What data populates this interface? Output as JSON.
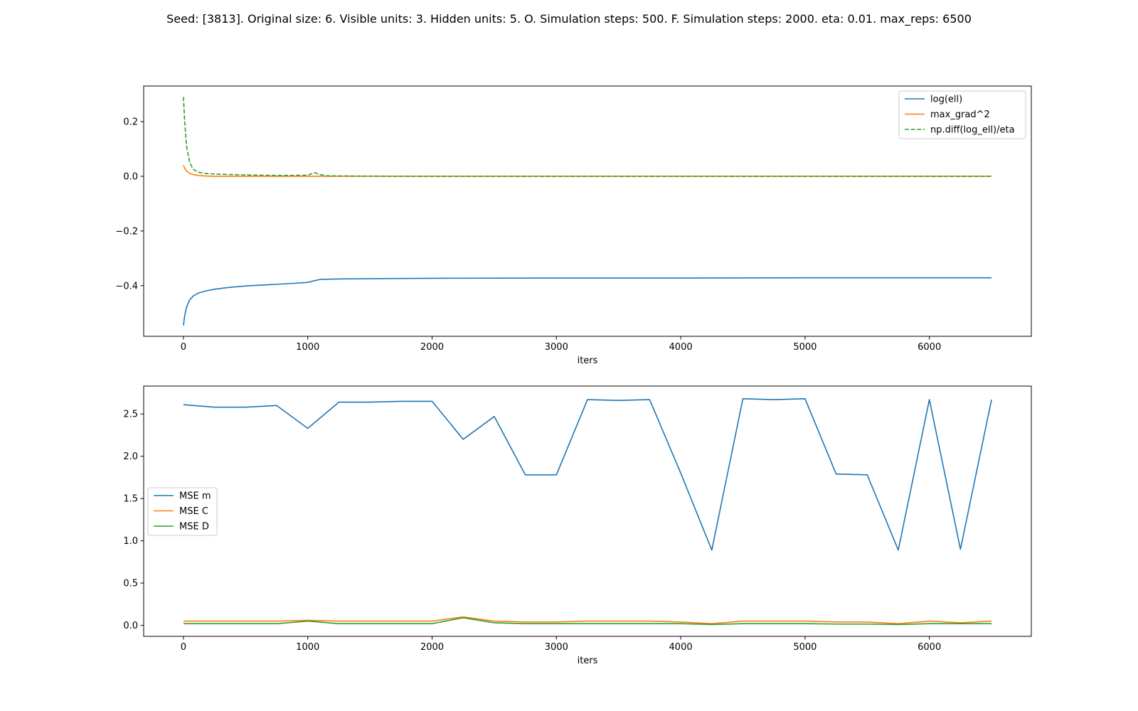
{
  "figure": {
    "title": "Seed: [3813]. Original size: 6. Visible units: 3. Hidden units: 5. O. Simulation steps: 500. F. Simulation steps: 2000. eta: 0.01. max_reps: 6500"
  },
  "chart_data": [
    {
      "type": "line",
      "title": "",
      "xlabel": "iters",
      "ylabel": "",
      "xlim": [
        -320,
        6820
      ],
      "ylim": [
        -0.585,
        0.33
      ],
      "xticks": [
        0,
        1000,
        2000,
        3000,
        4000,
        5000,
        6000
      ],
      "yticks": [
        0.2,
        0.0,
        -0.2,
        -0.4
      ],
      "ytick_labels": [
        "0.2",
        "0.0",
        "−0.2",
        "−0.4"
      ],
      "grid": false,
      "legend_position": "upper right",
      "series": [
        {
          "name": "log(ell)",
          "color": "#1f77b4",
          "dash": "solid",
          "x": [
            0,
            10,
            25,
            50,
            80,
            120,
            180,
            250,
            350,
            500,
            700,
            900,
            1000,
            1050,
            1100,
            1300,
            1600,
            2000,
            3000,
            4000,
            5000,
            6000,
            6500
          ],
          "y": [
            -0.545,
            -0.51,
            -0.478,
            -0.452,
            -0.437,
            -0.427,
            -0.419,
            -0.413,
            -0.407,
            -0.401,
            -0.396,
            -0.391,
            -0.388,
            -0.382,
            -0.377,
            -0.375,
            -0.374,
            -0.373,
            -0.372,
            -0.372,
            -0.371,
            -0.371,
            -0.371
          ]
        },
        {
          "name": "max_grad^2",
          "color": "#ff7f0e",
          "dash": "solid",
          "x": [
            0,
            10,
            25,
            50,
            80,
            120,
            180,
            250,
            400,
            600,
            1000,
            2000,
            4000,
            6500
          ],
          "y": [
            0.04,
            0.03,
            0.019,
            0.011,
            0.006,
            0.003,
            0.001,
            0.0,
            0.0,
            0.0,
            0.0,
            0.0,
            0.0,
            0.0
          ]
        },
        {
          "name": "np.diff(log_ell)/eta",
          "color": "#2ca02c",
          "dash": "dashed",
          "x": [
            0,
            10,
            25,
            50,
            80,
            120,
            180,
            250,
            400,
            600,
            800,
            1000,
            1030,
            1060,
            1090,
            1150,
            1300,
            2000,
            4000,
            6500
          ],
          "y": [
            0.29,
            0.2,
            0.11,
            0.05,
            0.025,
            0.015,
            0.01,
            0.008,
            0.006,
            0.004,
            0.003,
            0.004,
            0.009,
            0.013,
            0.007,
            0.002,
            0.001,
            0.0,
            0.0,
            0.0
          ]
        }
      ]
    },
    {
      "type": "line",
      "title": "",
      "xlabel": "iters",
      "ylabel": "",
      "xlim": [
        -320,
        6820
      ],
      "ylim": [
        -0.13,
        2.83
      ],
      "xticks": [
        0,
        1000,
        2000,
        3000,
        4000,
        5000,
        6000
      ],
      "yticks": [
        0.0,
        0.5,
        1.0,
        1.5,
        2.0,
        2.5
      ],
      "ytick_labels": [
        "0.0",
        "0.5",
        "1.0",
        "1.5",
        "2.0",
        "2.5"
      ],
      "grid": false,
      "legend_position": "center left",
      "series": [
        {
          "name": "MSE m",
          "color": "#1f77b4",
          "dash": "solid",
          "x": [
            0,
            250,
            500,
            750,
            1000,
            1250,
            1500,
            1750,
            2000,
            2250,
            2500,
            2750,
            3000,
            3250,
            3500,
            3750,
            4000,
            4250,
            4500,
            4750,
            5000,
            5250,
            5500,
            5750,
            6000,
            6250,
            6500
          ],
          "y": [
            2.61,
            2.58,
            2.58,
            2.6,
            2.33,
            2.64,
            2.64,
            2.65,
            2.65,
            2.2,
            2.47,
            1.78,
            1.78,
            2.67,
            2.66,
            2.67,
            1.8,
            0.89,
            2.68,
            2.67,
            2.68,
            1.79,
            1.78,
            0.89,
            2.67,
            0.9,
            2.67
          ]
        },
        {
          "name": "MSE C",
          "color": "#ff7f0e",
          "dash": "solid",
          "x": [
            0,
            250,
            500,
            750,
            1000,
            1250,
            1500,
            1750,
            2000,
            2250,
            2500,
            2750,
            3000,
            3250,
            3500,
            3750,
            4000,
            4250,
            4500,
            4750,
            5000,
            5250,
            5500,
            5750,
            6000,
            6250,
            6500
          ],
          "y": [
            0.05,
            0.05,
            0.05,
            0.05,
            0.06,
            0.05,
            0.05,
            0.05,
            0.05,
            0.1,
            0.05,
            0.04,
            0.04,
            0.05,
            0.05,
            0.05,
            0.04,
            0.02,
            0.05,
            0.05,
            0.05,
            0.04,
            0.04,
            0.02,
            0.05,
            0.03,
            0.05
          ]
        },
        {
          "name": "MSE D",
          "color": "#2ca02c",
          "dash": "solid",
          "x": [
            0,
            250,
            500,
            750,
            1000,
            1250,
            1500,
            1750,
            2000,
            2250,
            2500,
            2750,
            3000,
            3250,
            3500,
            3750,
            4000,
            4250,
            4500,
            4750,
            5000,
            5250,
            5500,
            5750,
            6000,
            6250,
            6500
          ],
          "y": [
            0.02,
            0.02,
            0.02,
            0.02,
            0.05,
            0.02,
            0.02,
            0.02,
            0.02,
            0.09,
            0.03,
            0.02,
            0.02,
            0.02,
            0.02,
            0.02,
            0.02,
            0.01,
            0.02,
            0.02,
            0.02,
            0.015,
            0.015,
            0.01,
            0.02,
            0.02,
            0.02
          ]
        }
      ]
    }
  ]
}
